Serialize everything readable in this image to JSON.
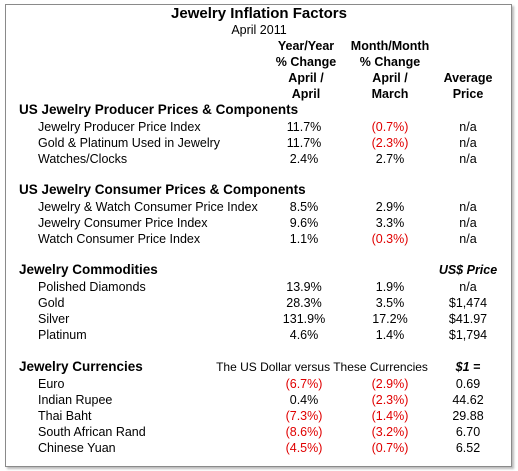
{
  "header": {
    "title": "Jewelry Inflation Factors",
    "date": "April 2011",
    "columns": [
      [
        "Year/Year",
        "% Change",
        "April /",
        "April"
      ],
      [
        "Month/Month",
        "% Change",
        "April /",
        "March"
      ],
      [
        "Average",
        "Price"
      ]
    ]
  },
  "sections": [
    {
      "heading": "US Jewelry Producer Prices & Components",
      "rows": [
        [
          "Jewelry Producer Price Index",
          "11.7%",
          "(0.7%)",
          "n/a"
        ],
        [
          "Gold & Platinum Used in Jewelry",
          "11.7%",
          "(2.3%)",
          "n/a"
        ],
        [
          "Watches/Clocks",
          "2.4%",
          "2.7%",
          "n/a"
        ]
      ]
    },
    {
      "heading": "US Jewelry Consumer Prices & Components",
      "rows": [
        [
          "Jewelry & Watch Consumer Price Index",
          "8.5%",
          "2.9%",
          "n/a"
        ],
        [
          "Jewelry Consumer Price Index",
          "9.6%",
          "3.3%",
          "n/a"
        ],
        [
          "Watch Consumer Price Index",
          "1.1%",
          "(0.3%)",
          "n/a"
        ]
      ]
    },
    {
      "heading": "Jewelry Commodities",
      "price_header": "US$ Price",
      "rows": [
        [
          "Polished Diamonds",
          "13.9%",
          "1.9%",
          "n/a"
        ],
        [
          "Gold",
          "28.3%",
          "3.5%",
          "$1,474"
        ],
        [
          "Silver",
          "131.9%",
          "17.2%",
          "$41.97"
        ],
        [
          "Platinum",
          "4.6%",
          "1.4%",
          "$1,794"
        ]
      ]
    },
    {
      "heading": "Jewelry Currencies",
      "note": "The US Dollar versus These Currencies",
      "price_header": "$1 =",
      "rows": [
        [
          "Euro",
          "(6.7%)",
          "(2.9%)",
          "0.69"
        ],
        [
          "Indian Rupee",
          "0.4%",
          "(2.3%)",
          "44.62"
        ],
        [
          "Thai Baht",
          "(7.3%)",
          "(1.4%)",
          "29.88"
        ],
        [
          "South African Rand",
          "(8.6%)",
          "(3.2%)",
          "6.70"
        ],
        [
          "Chinese Yuan",
          "(4.5%)",
          "(0.7%)",
          "6.52"
        ]
      ]
    }
  ]
}
